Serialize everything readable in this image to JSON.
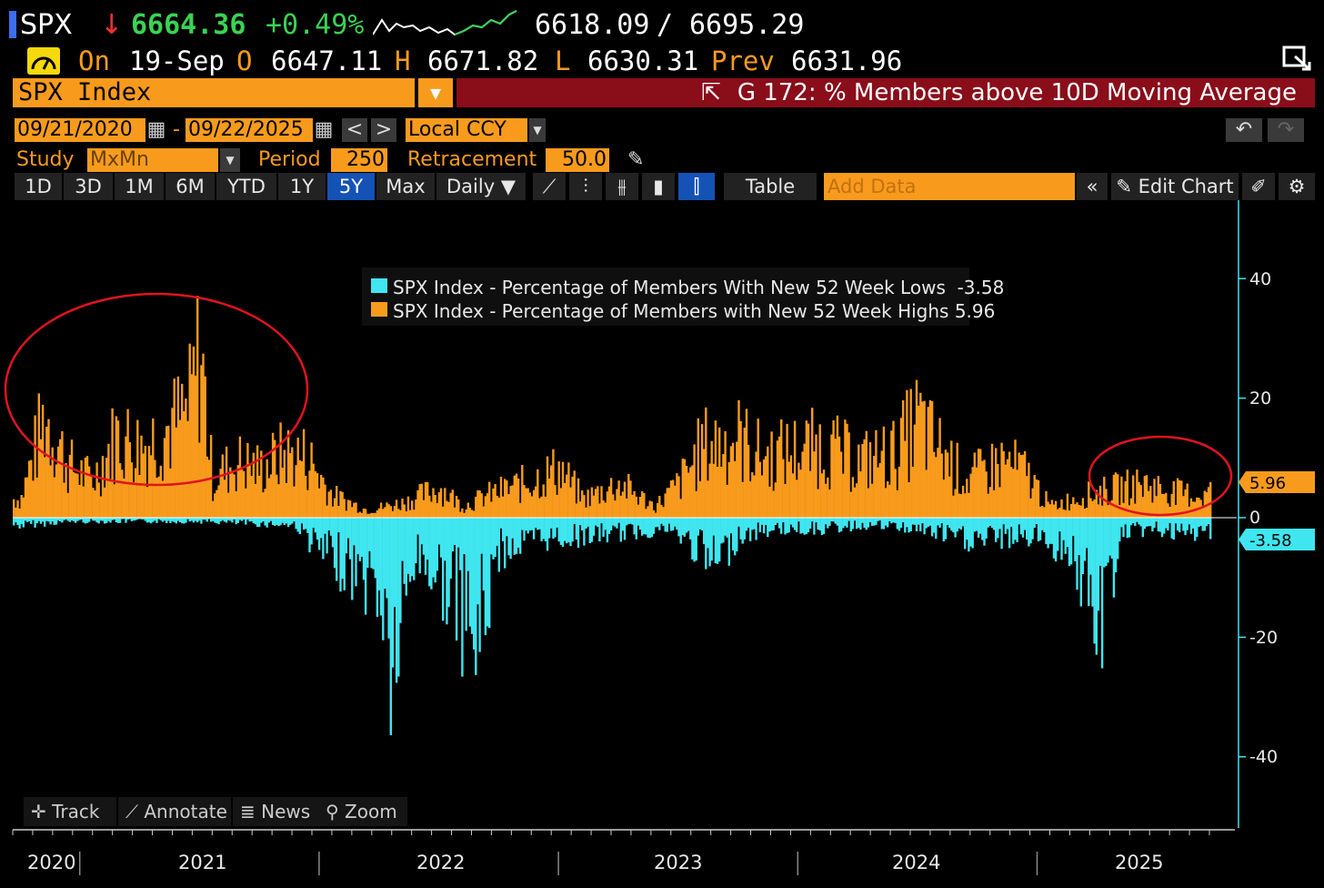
{
  "quote": {
    "ticker": "SPX",
    "direction_icon": "down-arrow-icon",
    "last": "6664.36",
    "change": "+0.49%",
    "range_low": "6618.09",
    "range_sep": "/",
    "range_high": "6695.29",
    "on_label": "On",
    "date": "19-Sep",
    "open_label": "O",
    "open": "6647.11",
    "high_label": "H",
    "high": "6671.82",
    "low_label": "L",
    "low": "6630.31",
    "prev_label": "Prev",
    "prev": "6631.96",
    "colors": {
      "ticker_flag": "#3b6ff0",
      "last": "#39d353",
      "change": "#39d353",
      "down": "#ff3030"
    }
  },
  "security": {
    "name": "SPX Index",
    "function_title": "G 172: % Members above 10D Moving Average"
  },
  "controls": {
    "start_date": "09/21/2020",
    "end_date": "09/22/2025",
    "date_sep": "-",
    "currency": "Local CCY",
    "study_label": "Study",
    "study_value": "MxMn",
    "period_label": "Period",
    "period_value": "250",
    "retracement_label": "Retracement",
    "retracement_value": "50.0"
  },
  "toolbar": {
    "ranges": [
      "1D",
      "3D",
      "1M",
      "6M",
      "YTD",
      "1Y",
      "5Y",
      "Max"
    ],
    "selected_range": "5Y",
    "frequency": "Daily ▼",
    "table_label": "Table",
    "add_data_placeholder": "Add Data",
    "edit_chart_label": "Edit Chart"
  },
  "bottom_tools": {
    "track": "Track",
    "annotate": "Annotate",
    "news": "News",
    "zoom": "Zoom"
  },
  "chart_data": {
    "type": "bar",
    "legend": [
      {
        "name": "SPX Index - Percentage of Members With New 52 Week Lows",
        "last": "-3.58",
        "color": "#3fe6f0"
      },
      {
        "name": "SPX Index - Percentage of Members with New 52 Week Highs",
        "last": "5.96",
        "color": "#f89b1d"
      }
    ],
    "x_tick_labels": [
      "2020",
      "2021",
      "2022",
      "2023",
      "2024",
      "2025"
    ],
    "y_tick_labels": [
      "40",
      "20",
      "0",
      "-20",
      "-40"
    ],
    "ylim": [
      -50,
      50
    ],
    "last_value_labels": {
      "highs": "5.96",
      "lows": "-3.58"
    },
    "highs_peaks": [
      [
        2020.75,
        5
      ],
      [
        2020.85,
        27
      ],
      [
        2020.95,
        14
      ],
      [
        2021.05,
        10
      ],
      [
        2021.15,
        22
      ],
      [
        2021.25,
        19
      ],
      [
        2021.35,
        23
      ],
      [
        2021.45,
        28
      ],
      [
        2021.5,
        45
      ],
      [
        2021.55,
        10
      ],
      [
        2021.65,
        15
      ],
      [
        2021.75,
        13
      ],
      [
        2021.85,
        17
      ],
      [
        2021.95,
        16
      ],
      [
        2022.05,
        6
      ],
      [
        2022.2,
        2
      ],
      [
        2022.35,
        4
      ],
      [
        2022.5,
        8
      ],
      [
        2022.6,
        3
      ],
      [
        2022.7,
        6
      ],
      [
        2022.85,
        9
      ],
      [
        2023.0,
        13
      ],
      [
        2023.1,
        5
      ],
      [
        2023.25,
        9
      ],
      [
        2023.4,
        3
      ],
      [
        2023.5,
        9
      ],
      [
        2023.6,
        19
      ],
      [
        2023.75,
        21
      ],
      [
        2023.85,
        16
      ],
      [
        2024.0,
        18
      ],
      [
        2024.1,
        19
      ],
      [
        2024.25,
        15
      ],
      [
        2024.4,
        17
      ],
      [
        2024.5,
        26
      ],
      [
        2024.55,
        21
      ],
      [
        2024.7,
        10
      ],
      [
        2024.85,
        15
      ],
      [
        2024.95,
        12
      ],
      [
        2025.05,
        3
      ],
      [
        2025.2,
        6
      ],
      [
        2025.35,
        8
      ],
      [
        2025.45,
        9
      ],
      [
        2025.55,
        7
      ],
      [
        2025.65,
        6
      ]
    ],
    "lows_troughs": [
      [
        2020.75,
        -2
      ],
      [
        2020.95,
        -1
      ],
      [
        2021.2,
        -1
      ],
      [
        2021.5,
        -1
      ],
      [
        2021.9,
        -2
      ],
      [
        2022.0,
        -9
      ],
      [
        2022.15,
        -15
      ],
      [
        2022.25,
        -20
      ],
      [
        2022.3,
        -43
      ],
      [
        2022.4,
        -10
      ],
      [
        2022.55,
        -20
      ],
      [
        2022.65,
        -35
      ],
      [
        2022.75,
        -9
      ],
      [
        2022.9,
        -6
      ],
      [
        2023.1,
        -5
      ],
      [
        2023.3,
        -4
      ],
      [
        2023.45,
        -3
      ],
      [
        2023.55,
        -7
      ],
      [
        2023.65,
        -13
      ],
      [
        2023.75,
        -5
      ],
      [
        2023.9,
        -3
      ],
      [
        2024.1,
        -3
      ],
      [
        2024.3,
        -2
      ],
      [
        2024.5,
        -3
      ],
      [
        2024.7,
        -6
      ],
      [
        2025.0,
        -5
      ],
      [
        2025.15,
        -10
      ],
      [
        2025.25,
        -33
      ],
      [
        2025.35,
        -4
      ],
      [
        2025.5,
        -3
      ],
      [
        2025.6,
        -5
      ],
      [
        2025.7,
        -3.58
      ]
    ]
  }
}
